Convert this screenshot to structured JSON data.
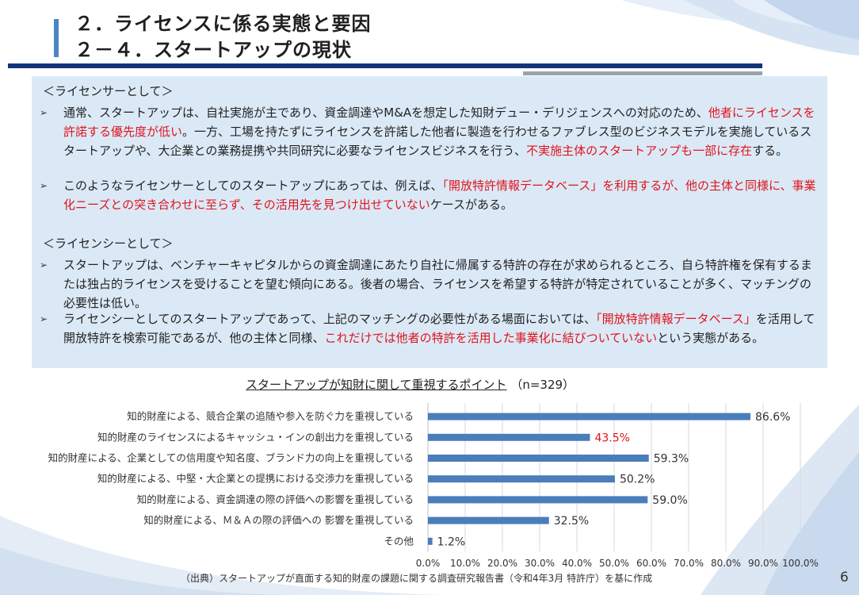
{
  "title": {
    "line1": "２．ライセンスに係る実態と要因",
    "line2": "２－４．スタートアップの現状"
  },
  "licensor": {
    "heading": "＜ライセンサーとして＞",
    "bullets": [
      [
        {
          "t": "通常、スタートアップは、自社実施が主であり、資金調達やM&Aを想定した知財デュー・デリジェンスへの対応のため、"
        },
        {
          "t": "他者にライセンスを許諾する優先度が低い",
          "red": true
        },
        {
          "t": "。一方、工場を持たずにライセンスを許諾した他者に製造を行わせるファブレス型のビジネスモデルを実施しているスタートアップや、大企業との業務提携や共同研究に必要なライセンスビジネスを行う、"
        },
        {
          "t": "不実施主体のスタートアップも一部に存在",
          "red": true
        },
        {
          "t": "する。"
        }
      ],
      [
        {
          "t": "このようなライセンサーとしてのスタートアップにあっては、例えば、"
        },
        {
          "t": "「開放特許情報データベース」を利用するが、他の主体と同様に、事業化ニーズとの突き合わせに至らず、その活用先を見つけ出せていない",
          "red": true
        },
        {
          "t": "ケースがある。"
        }
      ]
    ]
  },
  "licensee": {
    "heading": "＜ライセンシーとして＞",
    "bullets": [
      [
        {
          "t": "スタートアップは、ベンチャーキャピタルからの資金調達にあたり自社に帰属する特許の存在が求められるところ、自ら特許権を保有するまたは独占的ライセンスを受けることを望む傾向にある。後者の場合、ライセンスを希望する特許が特定されていることが多く、マッチングの必要性は低い。"
        }
      ],
      [
        {
          "t": "ライセンシーとしてのスタートアップであって、上記のマッチングの必要性がある場面においては、"
        },
        {
          "t": "「開放特許情報データベース」",
          "red": true
        },
        {
          "t": "を活用して開放特許を検索可能であるが、他の主体と同様、"
        },
        {
          "t": "これだけでは他者の特許を活用した事業化に結びついていない",
          "red": true
        },
        {
          "t": "という実態がある。"
        }
      ]
    ]
  },
  "bullet_marker": "➢",
  "chart_title": {
    "main": "スタートアップが知財に関して重視するポイント",
    "n": "（n=329）"
  },
  "chart_data": {
    "type": "bar",
    "orientation": "horizontal",
    "categories": [
      "知的財産による、競合企業の追随や参入を防ぐ力を重視している",
      "知的財産のライセンスによるキャッシュ・インの創出力を重視している",
      "知的財産による、企業としての信用度や知名度、ブランド力の向上を重視している",
      "知的財産による、中堅・大企業との提携における交渉力を重視している",
      "知的財産による、資金調達の際の評価への影響を重視している",
      "知的財産による、Ｍ＆Ａの際の評価への 影響を重視している",
      "その他"
    ],
    "values": [
      86.6,
      43.5,
      59.3,
      50.2,
      59.0,
      32.5,
      1.2
    ],
    "value_labels": [
      "86.6%",
      "43.5%",
      "59.3%",
      "50.2%",
      "59.0%",
      "32.5%",
      "1.2%"
    ],
    "highlight_index": 1,
    "xlim": [
      0,
      100
    ],
    "xticks": [
      "0.0%",
      "10.0%",
      "20.0%",
      "30.0%",
      "40.0%",
      "50.0%",
      "60.0%",
      "70.0%",
      "80.0%",
      "90.0%",
      "100.0%"
    ],
    "bar_color": "#4a7ebb",
    "highlight_color": "#e0141b",
    "grid": true
  },
  "source": "（出典）スタートアップが直面する知的財産の課題に関する調査研究報告書（令和4年3月 特許庁）を基に作成",
  "page_number": "6"
}
